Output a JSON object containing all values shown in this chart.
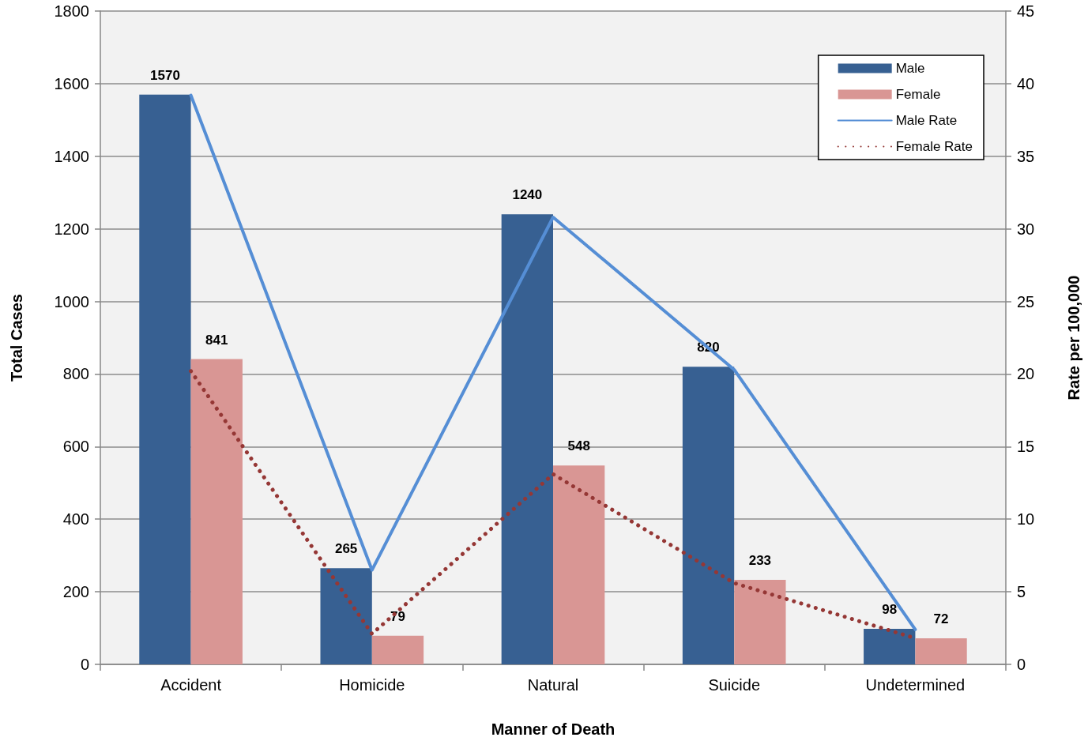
{
  "chart_data": {
    "type": "bar",
    "xlabel": "Manner of Death",
    "ylabel": "Total Cases",
    "y2label": "Rate per 100,000",
    "categories": [
      "Accident",
      "Homicide",
      "Natural",
      "Suicide",
      "Undetermined"
    ],
    "series": [
      {
        "name": "Male",
        "color": "#376092",
        "values": [
          1570,
          265,
          1240,
          820,
          98
        ],
        "value_labels": [
          "1570",
          "265",
          "1240",
          "820",
          "98"
        ]
      },
      {
        "name": "Female",
        "color": "#d99694",
        "values": [
          841,
          79,
          548,
          233,
          72
        ],
        "value_labels": [
          "841",
          "79",
          "548",
          "233",
          "72"
        ]
      },
      {
        "name": "Male Rate",
        "type": "line",
        "axis": "y2",
        "color": "#558ed5",
        "line_style": "solid",
        "values": [
          39.2,
          6.5,
          30.8,
          20.3,
          2.4
        ]
      },
      {
        "name": "Female Rate",
        "type": "line",
        "axis": "y2",
        "color": "#953735",
        "line_style": "dotted",
        "values": [
          20.2,
          2.1,
          13.1,
          5.6,
          1.8
        ]
      }
    ],
    "ylim": [
      0,
      1800
    ],
    "yticks": [
      0,
      200,
      400,
      600,
      800,
      1000,
      1200,
      1400,
      1600,
      1800
    ],
    "y2lim": [
      0,
      45
    ],
    "y2ticks": [
      0,
      5,
      10,
      15,
      20,
      25,
      30,
      35,
      40,
      45
    ],
    "grid": "y",
    "legend": "top right",
    "marker": "none"
  }
}
